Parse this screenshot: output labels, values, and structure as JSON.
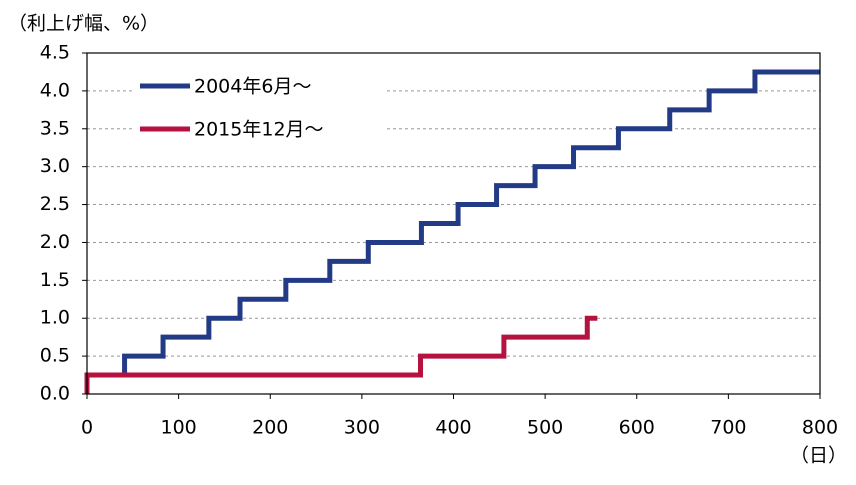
{
  "chart_data": {
    "type": "step-line",
    "y_label": "（利上げ幅、%）",
    "x_label": "（日）",
    "xlim": [
      0,
      800
    ],
    "xticks": [
      0,
      100,
      200,
      300,
      400,
      500,
      600,
      700,
      800
    ],
    "ylim": [
      0,
      4.5
    ],
    "yticks": [
      {
        "value": 0,
        "label": "0.0"
      },
      0.5,
      {
        "value": 1,
        "label": "1.0"
      },
      1.5,
      {
        "value": 2,
        "label": "2.0"
      },
      2.5,
      {
        "value": 3,
        "label": "3.0"
      },
      3.5,
      {
        "value": 4,
        "label": "4.0"
      },
      4.5
    ],
    "grid": true,
    "legend": "upper-left",
    "series": [
      {
        "name": "2004年6月～",
        "color": "#233a86",
        "x": [
          0,
          41,
          83,
          133,
          167,
          217,
          265,
          307,
          365,
          405,
          447,
          489,
          531,
          580,
          636,
          679,
          729,
          800
        ],
        "values": [
          0.25,
          0.5,
          0.75,
          1,
          1.25,
          1.5,
          1.75,
          2,
          2.25,
          2.5,
          2.75,
          3,
          3.25,
          3.5,
          3.75,
          4,
          4.25,
          4.25
        ]
      },
      {
        "name": "2015年12月～",
        "color": "#b5123f",
        "x": [
          0,
          0,
          364,
          455,
          546,
          557
        ],
        "values": [
          0,
          0.25,
          0.5,
          0.75,
          1,
          1
        ]
      }
    ]
  }
}
